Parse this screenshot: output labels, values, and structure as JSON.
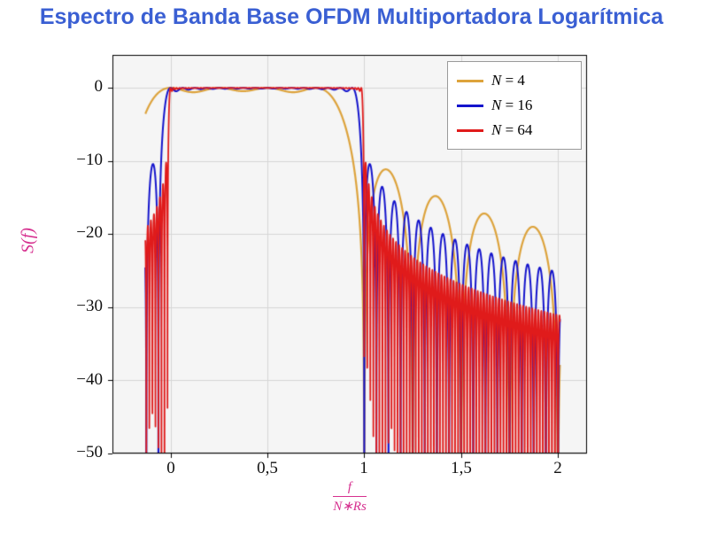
{
  "chart_data": {
    "type": "line",
    "title": "Espectro de Banda Base OFDM Multiportadora Logarítmica",
    "ylabel": "S(f)",
    "xlabel_numerator": "f",
    "xlabel_denominator": "N∗Rs",
    "xlim": [
      -0.3,
      2.15
    ],
    "ylim": [
      -50,
      4.5
    ],
    "xticks": [
      0,
      0.5,
      1,
      1.5,
      2
    ],
    "xtick_labels": [
      "0",
      "0,5",
      "1",
      "1,5",
      "2"
    ],
    "yticks": [
      0,
      -10,
      -20,
      -30,
      -40,
      -50
    ],
    "ytick_labels": [
      "0",
      "−10",
      "−20",
      "−30",
      "−40",
      "−50"
    ],
    "grid": true,
    "legend_position": "top-right",
    "series": [
      {
        "name": "N = 4",
        "label_var": "N",
        "label_rest": " = 4",
        "N": 4,
        "color": "#ddA33c",
        "samples": 1600,
        "width": 2.2
      },
      {
        "name": "N = 16",
        "label_var": "N",
        "label_rest": " = 16",
        "N": 16,
        "color": "#1414cc",
        "samples": 2600,
        "width": 2
      },
      {
        "name": "N = 64",
        "label_var": "N",
        "label_rest": " = 64",
        "N": 64,
        "color": "#e01b1b",
        "samples": 4400,
        "width": 1.8
      }
    ],
    "model": {
      "description": "OFDM baseband spectrum: S(x) = 10*log10( sum_{k=0}^{N-1} sinc^2(N*x - k) ), sinc(u)=sin(pi*u)/(pi*u), x = f/(N*Rs). Flat 0 dB band over x in [0,1], sinc sidelobes outside; deeper/faster ripple for larger N.",
      "x_domain": [
        -0.13,
        2.01
      ]
    },
    "colors": {
      "title": "#3a5fd3",
      "axis_label": "#d6308f",
      "plot_bg": "#f5f5f5",
      "grid": "#d6d6d6",
      "frame": "#000000",
      "tick_text": "#111111"
    }
  }
}
